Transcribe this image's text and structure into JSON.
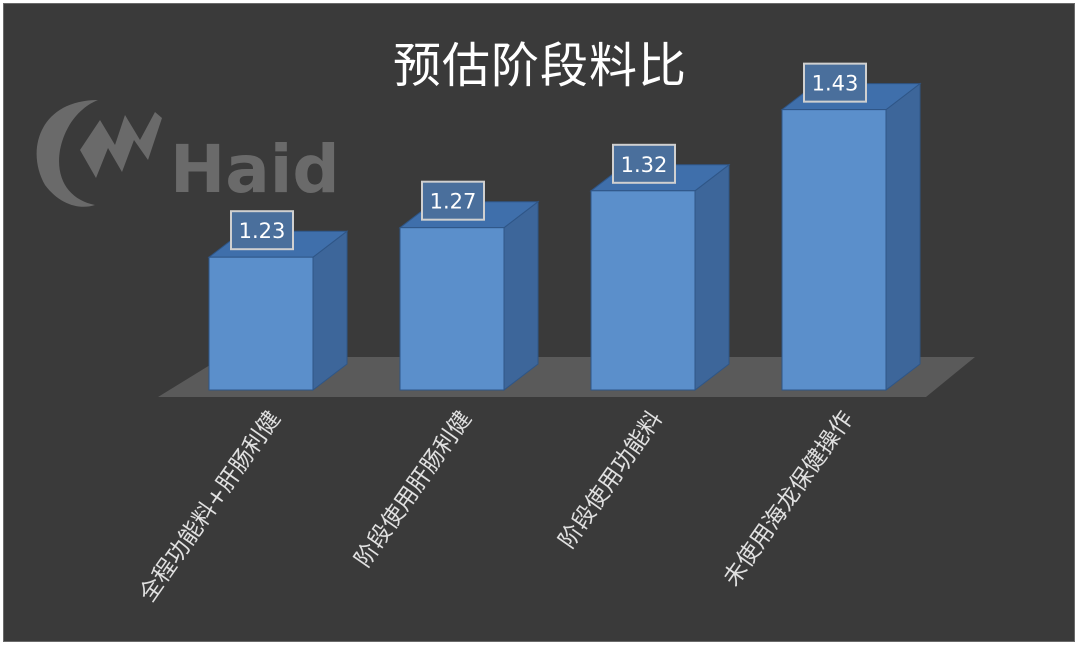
{
  "logo": {
    "text": "Haid"
  },
  "colors": {
    "background": "#3a3a3a",
    "bar_front": "#5b8fcb",
    "bar_top": "#3f6fab",
    "bar_side": "#3d669a",
    "floor": "#5a5a5a",
    "text": "#ffffff"
  },
  "chart_data": {
    "type": "bar",
    "title": "预估阶段料比",
    "categories": [
      "全程功能料+肝肠利健",
      "阶段使用肝肠利健",
      "阶段使用功能料",
      "未使用海龙保健操作"
    ],
    "values": [
      1.23,
      1.27,
      1.32,
      1.43
    ],
    "data_labels": [
      "1.23",
      "1.27",
      "1.32",
      "1.43"
    ],
    "ylim": [
      1.05,
      1.5
    ],
    "grid": false,
    "legend": "none",
    "style": "3d-column"
  }
}
